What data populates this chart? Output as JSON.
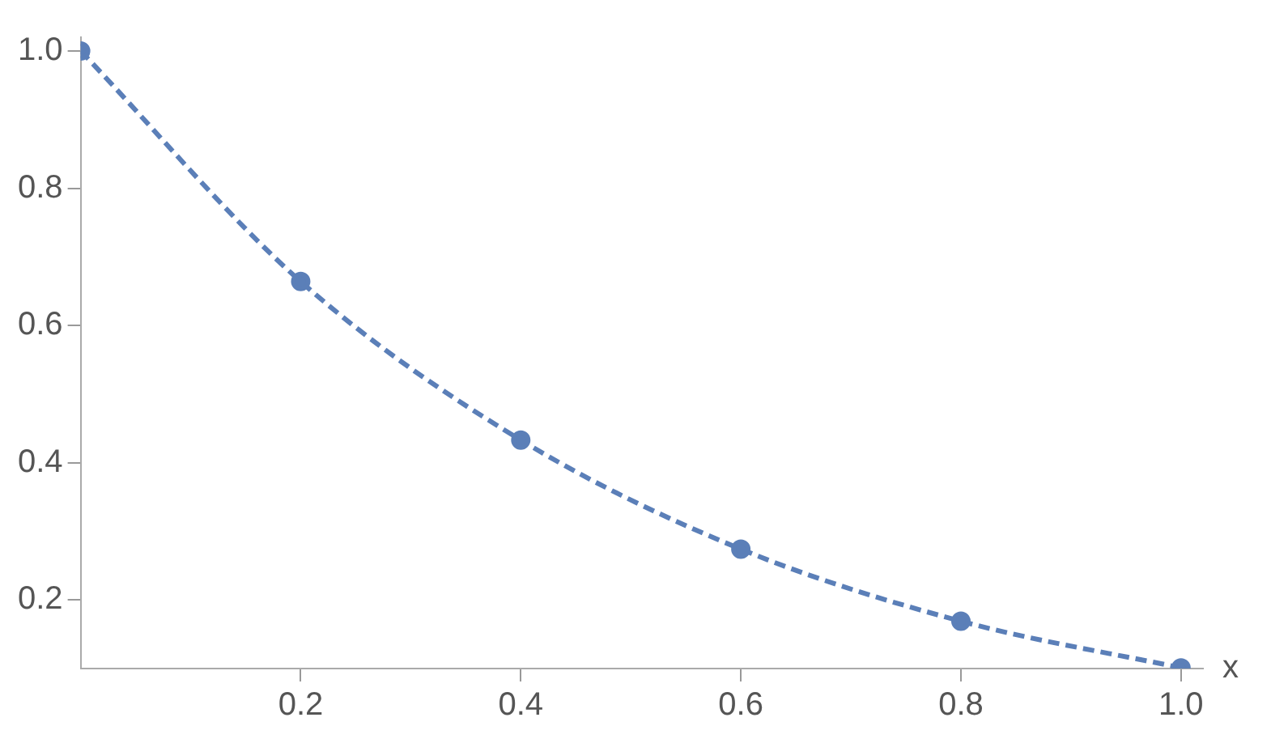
{
  "chart_data": {
    "type": "line",
    "xlabel": "x",
    "x": [
      0,
      0.2,
      0.4,
      0.6,
      0.8,
      1.0
    ],
    "series": [
      {
        "color": "#5b7fb8",
        "values": [
          1.0,
          0.664,
          0.433,
          0.274,
          0.169,
          0.101
        ]
      }
    ],
    "xlim": [
      0,
      1.02
    ],
    "xticks": [
      0.2,
      0.4,
      0.6,
      0.8,
      {
        "value": 1,
        "label": "1.0"
      }
    ],
    "ylim": [
      0.1,
      1.02
    ],
    "yticks": [
      0.2,
      0.4,
      0.6,
      0.8,
      {
        "value": 1,
        "label": "1.0"
      }
    ],
    "grid": false,
    "legend": false,
    "marker": "circle",
    "line_style": "dashed"
  }
}
